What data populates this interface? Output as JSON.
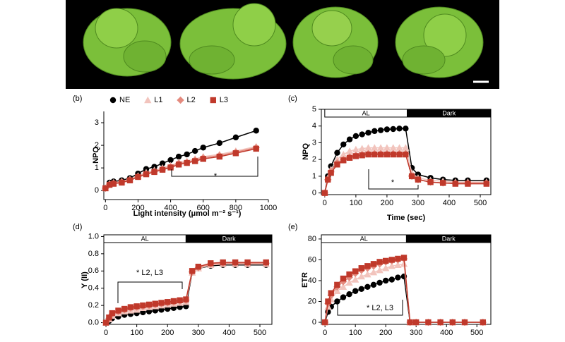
{
  "chart_data": [
    {
      "type": "line",
      "label": "(b)",
      "xlabel": "Light intensity (μmol m⁻² s⁻¹)",
      "ylabel": "NPQ",
      "x": [
        0,
        25,
        50,
        100,
        150,
        200,
        250,
        300,
        350,
        400,
        450,
        500,
        550,
        600,
        700,
        800,
        925
      ],
      "series": [
        {
          "name": "NE",
          "color": "#000000",
          "marker": "circle",
          "values": [
            0.1,
            0.35,
            0.4,
            0.45,
            0.55,
            0.75,
            0.95,
            1.05,
            1.2,
            1.35,
            1.5,
            1.6,
            1.75,
            1.9,
            2.1,
            2.35,
            2.65
          ]
        },
        {
          "name": "L1",
          "color": "#f2c4bd",
          "marker": "triangle",
          "values": [
            0.1,
            0.3,
            0.35,
            0.4,
            0.5,
            0.65,
            0.8,
            0.9,
            1.0,
            1.1,
            1.25,
            1.3,
            1.4,
            1.5,
            1.6,
            1.75,
            1.95
          ]
        },
        {
          "name": "L2",
          "color": "#e48a7e",
          "marker": "diamond",
          "values": [
            0.1,
            0.28,
            0.33,
            0.38,
            0.48,
            0.62,
            0.75,
            0.85,
            0.95,
            1.05,
            1.2,
            1.25,
            1.35,
            1.45,
            1.55,
            1.7,
            1.9
          ]
        },
        {
          "name": "L3",
          "color": "#c0392b",
          "marker": "square",
          "values": [
            0.1,
            0.25,
            0.3,
            0.35,
            0.45,
            0.6,
            0.72,
            0.82,
            0.92,
            1.02,
            1.15,
            1.22,
            1.3,
            1.4,
            1.5,
            1.65,
            1.85
          ]
        }
      ],
      "xlim": [
        -10,
        1000
      ],
      "xticks": [
        0,
        200,
        400,
        600,
        800,
        1000
      ],
      "ylim": [
        -0.4,
        3.5
      ],
      "yticks": [
        0,
        1,
        2,
        3
      ],
      "annotation": "*",
      "legend": "top"
    },
    {
      "type": "line",
      "label": "(c)",
      "xlabel": "Time (sec)",
      "ylabel": "NPQ",
      "phases": [
        {
          "label": "AL",
          "start": 0,
          "end": 265
        },
        {
          "label": "Dark",
          "start": 265,
          "end": 534
        }
      ],
      "x": [
        0,
        10,
        20,
        40,
        60,
        80,
        100,
        120,
        140,
        160,
        180,
        200,
        220,
        240,
        260,
        280,
        300,
        340,
        380,
        420,
        460,
        520
      ],
      "series": [
        {
          "color": "#000000",
          "marker": "circle",
          "values": [
            0,
            1.0,
            1.6,
            2.4,
            2.9,
            3.2,
            3.4,
            3.5,
            3.6,
            3.7,
            3.75,
            3.8,
            3.82,
            3.85,
            3.85,
            1.5,
            1.1,
            0.9,
            0.8,
            0.75,
            0.75,
            0.75
          ]
        },
        {
          "color": "#f2c4bd",
          "marker": "triangle",
          "values": [
            0,
            0.9,
            1.4,
            2.0,
            2.3,
            2.5,
            2.6,
            2.65,
            2.7,
            2.7,
            2.7,
            2.7,
            2.7,
            2.7,
            2.7,
            1.2,
            0.9,
            0.75,
            0.7,
            0.65,
            0.65,
            0.65
          ]
        },
        {
          "color": "#e48a7e",
          "marker": "diamond",
          "values": [
            0,
            0.8,
            1.3,
            1.8,
            2.0,
            2.15,
            2.25,
            2.3,
            2.35,
            2.35,
            2.35,
            2.35,
            2.35,
            2.35,
            2.35,
            1.0,
            0.8,
            0.65,
            0.6,
            0.6,
            0.6,
            0.6
          ]
        },
        {
          "color": "#c0392b",
          "marker": "square",
          "values": [
            0,
            0.8,
            1.2,
            1.7,
            1.95,
            2.1,
            2.2,
            2.25,
            2.3,
            2.3,
            2.3,
            2.3,
            2.3,
            2.3,
            2.3,
            1.0,
            0.8,
            0.65,
            0.6,
            0.55,
            0.55,
            0.55
          ]
        }
      ],
      "xlim": [
        -11,
        534
      ],
      "xticks": [
        0,
        100,
        200,
        300,
        400,
        500
      ],
      "ylim": [
        -0.1,
        5
      ],
      "yticks": [
        0,
        1,
        2,
        3,
        4,
        5
      ],
      "annotation": "*"
    },
    {
      "type": "line",
      "label": "(d)",
      "ylabel": "Y (II)",
      "phases": [
        {
          "label": "AL",
          "start": -7,
          "end": 260
        },
        {
          "label": "Dark",
          "start": 260,
          "end": 539
        }
      ],
      "x": [
        0,
        10,
        20,
        40,
        60,
        80,
        100,
        120,
        140,
        160,
        180,
        200,
        220,
        240,
        260,
        280,
        300,
        340,
        380,
        420,
        460,
        520
      ],
      "series": [
        {
          "color": "#000000",
          "marker": "circle",
          "values": [
            0,
            0.02,
            0.05,
            0.07,
            0.09,
            0.1,
            0.11,
            0.12,
            0.13,
            0.14,
            0.15,
            0.16,
            0.17,
            0.18,
            0.19,
            0.58,
            0.63,
            0.66,
            0.67,
            0.67,
            0.67,
            0.67
          ]
        },
        {
          "color": "#f2c4bd",
          "marker": "triangle",
          "values": [
            0,
            0.04,
            0.08,
            0.11,
            0.13,
            0.14,
            0.15,
            0.17,
            0.18,
            0.19,
            0.2,
            0.21,
            0.22,
            0.23,
            0.24,
            0.58,
            0.63,
            0.67,
            0.68,
            0.68,
            0.68,
            0.68
          ]
        },
        {
          "color": "#e48a7e",
          "marker": "diamond",
          "values": [
            0,
            0.05,
            0.1,
            0.13,
            0.15,
            0.17,
            0.18,
            0.19,
            0.2,
            0.21,
            0.22,
            0.23,
            0.24,
            0.25,
            0.26,
            0.59,
            0.64,
            0.68,
            0.69,
            0.69,
            0.69,
            0.69
          ]
        },
        {
          "color": "#c0392b",
          "marker": "square",
          "values": [
            0,
            0.06,
            0.11,
            0.14,
            0.16,
            0.18,
            0.19,
            0.2,
            0.21,
            0.22,
            0.23,
            0.24,
            0.25,
            0.26,
            0.27,
            0.6,
            0.65,
            0.69,
            0.7,
            0.7,
            0.7,
            0.7
          ]
        }
      ],
      "xlim": [
        -7,
        539
      ],
      "xticks": [
        0,
        100,
        200,
        300,
        400,
        500
      ],
      "ylim": [
        -0.02,
        1.02
      ],
      "yticks": [
        {
          "value": 0,
          "label": "0.0"
        },
        0.2,
        0.4,
        0.6,
        0.8,
        {
          "value": 1,
          "label": "1.0"
        }
      ],
      "annotation": "* L2, L3"
    },
    {
      "type": "line",
      "label": "(e)",
      "ylabel": "ETR",
      "phases": [
        {
          "label": "AL",
          "start": -12,
          "end": 268
        },
        {
          "label": "Dark",
          "start": 268,
          "end": 546
        }
      ],
      "x": [
        0,
        10,
        20,
        40,
        60,
        80,
        100,
        120,
        140,
        160,
        180,
        200,
        220,
        240,
        260,
        280,
        300,
        340,
        380,
        420,
        460,
        520
      ],
      "series": [
        {
          "color": "#000000",
          "marker": "circle",
          "values": [
            0,
            10,
            15,
            20,
            24,
            27,
            30,
            32,
            34,
            36,
            38,
            40,
            41,
            43,
            44,
            0,
            0,
            0,
            0,
            0,
            0,
            0
          ]
        },
        {
          "color": "#f2c4bd",
          "marker": "triangle",
          "values": [
            0,
            15,
            22,
            30,
            34,
            38,
            41,
            44,
            46,
            48,
            50,
            52,
            54,
            55,
            56,
            0,
            0,
            0,
            0,
            0,
            0,
            0
          ]
        },
        {
          "color": "#e48a7e",
          "marker": "diamond",
          "values": [
            0,
            18,
            26,
            34,
            39,
            43,
            47,
            50,
            52,
            54,
            56,
            58,
            59,
            60,
            61,
            0,
            0,
            0,
            0,
            0,
            0,
            0
          ]
        },
        {
          "color": "#c0392b",
          "marker": "square",
          "values": [
            0,
            20,
            28,
            36,
            42,
            46,
            49,
            52,
            54,
            56,
            58,
            59,
            60,
            61,
            62,
            0,
            0,
            0,
            0,
            0,
            0,
            0
          ]
        }
      ],
      "xlim": [
        -12,
        546
      ],
      "xticks": [
        0,
        100,
        200,
        300,
        400,
        500
      ],
      "ylim": [
        -2,
        84
      ],
      "yticks": [
        0,
        20,
        40,
        60,
        80
      ],
      "annotation": "* L2, L3"
    }
  ]
}
